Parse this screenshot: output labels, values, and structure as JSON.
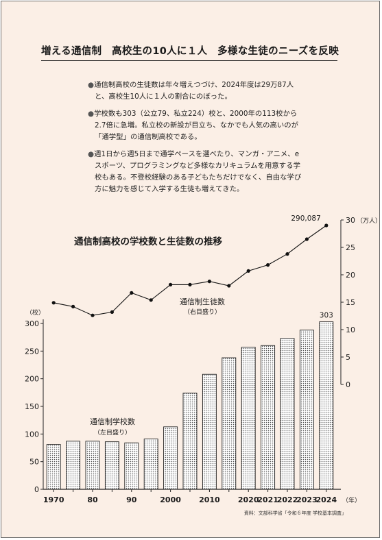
{
  "headline": "増える通信制　高校生の10人に１人　多様な生徒のニーズを反映",
  "bullets": [
    "通信制高校の生徒数は年々増えつづけ、2024年度は29万87人と、高校生10人に１人の割合にのぼった。",
    "学校数も303（公立79、私立224）校と、2000年の113校から2.7倍に急増。私立校の新設が目立ち、なかでも人気の高いのが「通学型」の通信制高校である。",
    "週1日から週5日まで通学ペースを選べたり、マンガ・アニメ、eスポーツ、プログラミングなど多様なカリキュラムを用意する学校もある。不登校経験のある子どもたちだけでなく、自由な学び方に魅力を感じて入学する生徒も増えてきた。"
  ],
  "bullet_marker": "●",
  "source": "資料：文部科学省「令和６年度 学校基本調査」",
  "colors": {
    "background": "#fbefe6",
    "ink": "#1a1a1a",
    "bar_fill": "#ffffff",
    "bar_dots": "#555555"
  },
  "chart_data": {
    "type": "bar+line",
    "title": "通信制高校の学校数と生徒数の推移",
    "x": [
      "1970",
      "1975",
      "1980",
      "1985",
      "1990",
      "1995",
      "2000",
      "2005",
      "2010",
      "2015",
      "2020",
      "2021",
      "2022",
      "2023",
      "2024"
    ],
    "x_tick_labels": [
      "1970",
      "",
      "80",
      "",
      "90",
      "",
      "2000",
      "",
      "2010",
      "",
      "2020",
      "2021",
      "2022",
      "2023",
      "2024"
    ],
    "x_unit": "（年）",
    "left_axis": {
      "unit": "（校）",
      "ylim": [
        0,
        300
      ],
      "ticks": [
        0,
        50,
        100,
        150,
        200,
        250,
        300
      ]
    },
    "right_axis": {
      "unit": "（万人）",
      "ylim": [
        0,
        30
      ],
      "ticks": [
        0,
        5,
        10,
        15,
        20,
        25,
        30
      ]
    },
    "series": [
      {
        "name": "通信制学校数",
        "note": "（左目盛り）",
        "type": "bar",
        "axis": "left",
        "values": [
          81,
          87,
          87,
          86,
          84,
          91,
          113,
          174,
          208,
          238,
          257,
          260,
          273,
          288,
          303
        ],
        "value_label": {
          "index": 14,
          "text": "303"
        }
      },
      {
        "name": "通信制生徒数",
        "note": "（右目盛り）",
        "type": "line",
        "axis": "right",
        "values": [
          14.9,
          14.2,
          12.6,
          13.2,
          16.7,
          15.4,
          18.2,
          18.2,
          18.8,
          18.0,
          20.7,
          21.8,
          23.8,
          26.5,
          29.0
        ],
        "value_label": {
          "index": 14,
          "text": "290,087"
        }
      }
    ]
  }
}
